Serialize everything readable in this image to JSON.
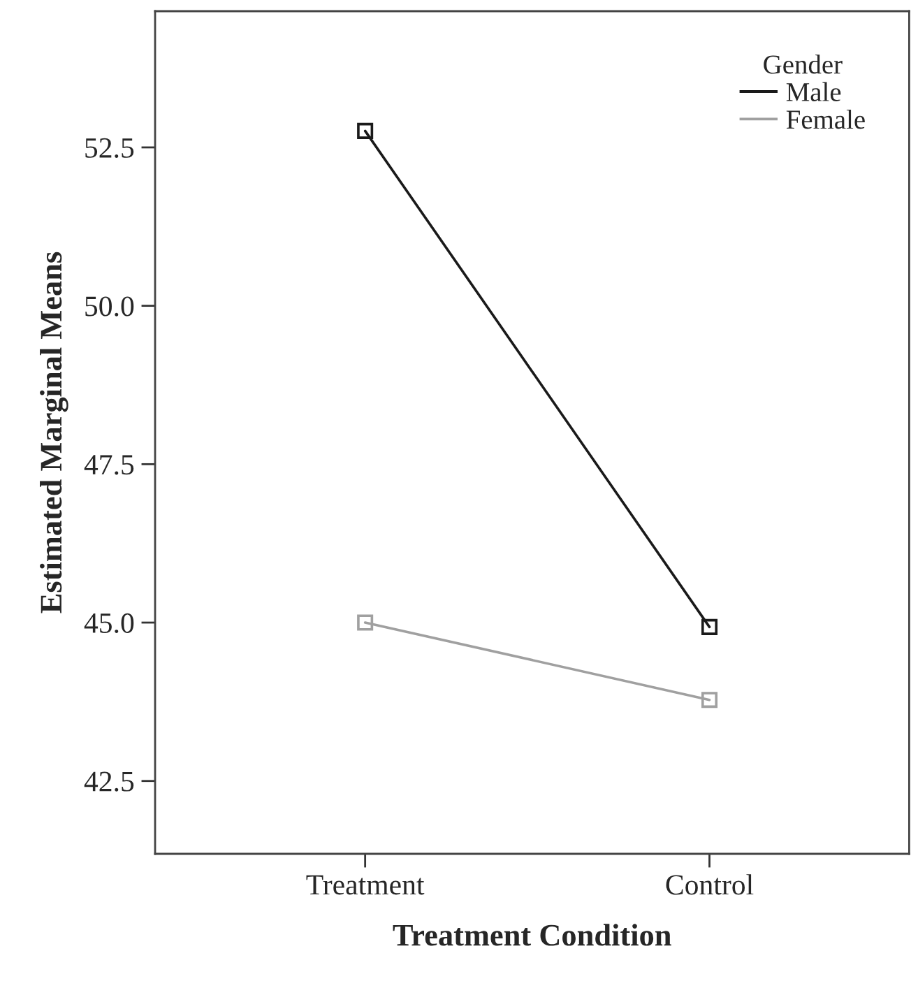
{
  "chart_data": {
    "type": "line",
    "xlabel": "Treatment Condition",
    "ylabel": "Estimated Marginal Means",
    "legend_title": "Gender",
    "categories": [
      "Treatment",
      "Control"
    ],
    "series": [
      {
        "name": "Male",
        "color": "#1a1a1a",
        "values": [
          52.76,
          44.93
        ]
      },
      {
        "name": "Female",
        "color": "#a0a0a0",
        "values": [
          45.0,
          43.78
        ]
      }
    ],
    "ylim": [
      41.35,
      54.65
    ],
    "yticks": [
      {
        "value": 42.5,
        "label": "42.5"
      },
      {
        "value": 45.0,
        "label": "45.0"
      },
      {
        "value": 47.5,
        "label": "47.5"
      },
      {
        "value": 50.0,
        "label": "50.0"
      },
      {
        "value": 52.5,
        "label": "52.5"
      }
    ],
    "grid": false,
    "legend": "top right",
    "marker": "square",
    "line_style": "solid"
  }
}
